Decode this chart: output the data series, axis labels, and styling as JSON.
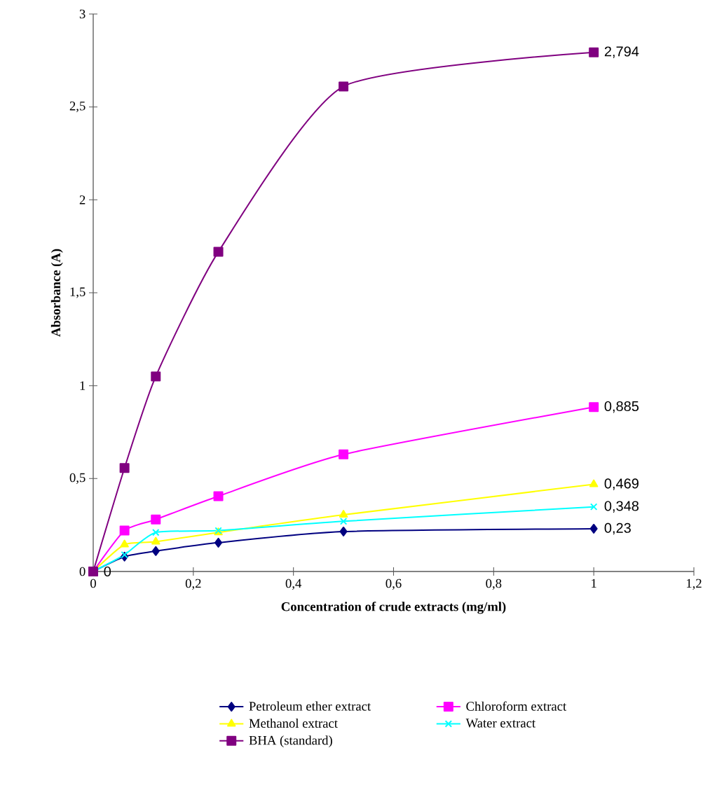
{
  "chart_data": {
    "type": "line",
    "xlabel": "Concentration of crude extracts (mg/ml)",
    "ylabel": "Absorbance (A)",
    "x": [
      0,
      0.0625,
      0.125,
      0.25,
      0.5,
      1
    ],
    "series": [
      {
        "name": "Petroleum ether extract",
        "color": "#000080",
        "marker": "diamond",
        "values": [
          0,
          0.08,
          0.11,
          0.155,
          0.215,
          0.23
        ],
        "value_labels": [
          "0",
          null,
          null,
          null,
          null,
          "0,23"
        ]
      },
      {
        "name": "Chloroform extract",
        "color": "#ff00ff",
        "marker": "square",
        "values": [
          0,
          0.22,
          0.28,
          0.405,
          0.63,
          0.885
        ],
        "value_labels": [
          null,
          null,
          null,
          null,
          null,
          "0,885"
        ]
      },
      {
        "name": "Methanol extract",
        "color": "#ffff00",
        "marker": "triangle",
        "values": [
          0,
          0.145,
          0.16,
          0.21,
          0.305,
          0.469
        ],
        "value_labels": [
          null,
          null,
          null,
          null,
          null,
          "0,469"
        ]
      },
      {
        "name": "Water extract",
        "color": "#00ffff",
        "marker": "cross",
        "values": [
          0,
          0.09,
          0.21,
          0.22,
          0.27,
          0.348
        ],
        "value_labels": [
          null,
          null,
          null,
          null,
          null,
          "0,348"
        ]
      },
      {
        "name": "BHA (standard)",
        "color": "#800080",
        "marker": "square",
        "values": [
          0,
          0.557,
          1.05,
          1.72,
          2.61,
          2.794
        ],
        "value_labels": [
          null,
          null,
          null,
          null,
          null,
          "2,794"
        ]
      }
    ],
    "xlim": [
      0,
      1.2
    ],
    "xticks": [
      0,
      {
        "value": 0.2,
        "label": "0,2"
      },
      {
        "value": 0.4,
        "label": "0,4"
      },
      {
        "value": 0.6,
        "label": "0,6"
      },
      {
        "value": 0.8,
        "label": "0,8"
      },
      1,
      {
        "value": 1.2,
        "label": "1,2"
      }
    ],
    "ylim": [
      0,
      3
    ],
    "yticks": [
      0,
      {
        "value": 0.5,
        "label": "0,5"
      },
      1,
      {
        "value": 1.5,
        "label": "1,5"
      },
      2,
      {
        "value": 2.5,
        "label": "2,5"
      },
      3
    ],
    "grid": false,
    "legend": "bottom",
    "line_style": "solid"
  }
}
